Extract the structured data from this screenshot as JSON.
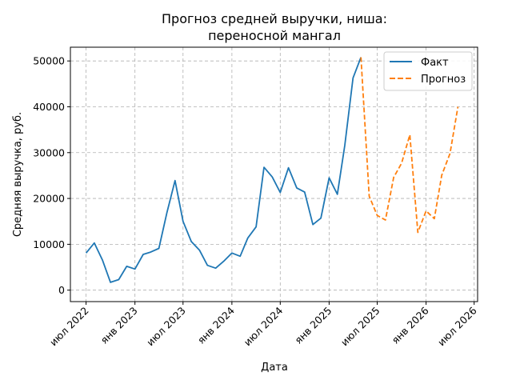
{
  "chart_data": {
    "type": "line",
    "title_lines": [
      "Прогноз средней выручки, ниша:",
      "переносной мангал"
    ],
    "xlabel": "Дата",
    "ylabel": "Средняя выручка, руб.",
    "x_range": [
      "2022-05-03",
      "2026-07-14"
    ],
    "ylim": [
      -2500,
      53000
    ],
    "y_ticks": [
      0,
      10000,
      20000,
      30000,
      40000,
      50000
    ],
    "x_ticks": [
      {
        "date": "2022-07-01",
        "label": "июл 2022"
      },
      {
        "date": "2023-01-01",
        "label": "янв 2023"
      },
      {
        "date": "2023-07-01",
        "label": "июл 2023"
      },
      {
        "date": "2024-01-01",
        "label": "янв 2024"
      },
      {
        "date": "2024-07-01",
        "label": "июл 2024"
      },
      {
        "date": "2025-01-01",
        "label": "янв 2025"
      },
      {
        "date": "2025-07-01",
        "label": "июл 2025"
      },
      {
        "date": "2026-01-01",
        "label": "янв 2026"
      },
      {
        "date": "2026-07-01",
        "label": "июл 2026"
      }
    ],
    "grid": true,
    "legend_position": "top-right",
    "series": [
      {
        "name": "Факт",
        "color": "#1f77b4",
        "style": "solid",
        "points": [
          {
            "x": "2022-07-01",
            "y": 8100
          },
          {
            "x": "2022-08-01",
            "y": 10300
          },
          {
            "x": "2022-09-01",
            "y": 6500
          },
          {
            "x": "2022-10-01",
            "y": 1700
          },
          {
            "x": "2022-11-01",
            "y": 2300
          },
          {
            "x": "2022-12-01",
            "y": 5200
          },
          {
            "x": "2023-01-01",
            "y": 4600
          },
          {
            "x": "2023-02-01",
            "y": 7800
          },
          {
            "x": "2023-03-01",
            "y": 8300
          },
          {
            "x": "2023-04-01",
            "y": 9100
          },
          {
            "x": "2023-05-01",
            "y": 16800
          },
          {
            "x": "2023-06-01",
            "y": 23900
          },
          {
            "x": "2023-07-01",
            "y": 15000
          },
          {
            "x": "2023-08-01",
            "y": 10600
          },
          {
            "x": "2023-09-01",
            "y": 8700
          },
          {
            "x": "2023-10-01",
            "y": 5400
          },
          {
            "x": "2023-11-01",
            "y": 4800
          },
          {
            "x": "2023-12-01",
            "y": 6300
          },
          {
            "x": "2024-01-01",
            "y": 8100
          },
          {
            "x": "2024-02-01",
            "y": 7400
          },
          {
            "x": "2024-03-01",
            "y": 11400
          },
          {
            "x": "2024-04-01",
            "y": 13800
          },
          {
            "x": "2024-05-01",
            "y": 26800
          },
          {
            "x": "2024-06-01",
            "y": 24700
          },
          {
            "x": "2024-07-01",
            "y": 21300
          },
          {
            "x": "2024-08-01",
            "y": 26700
          },
          {
            "x": "2024-09-01",
            "y": 22300
          },
          {
            "x": "2024-10-01",
            "y": 21400
          },
          {
            "x": "2024-11-01",
            "y": 14300
          },
          {
            "x": "2024-12-01",
            "y": 15700
          },
          {
            "x": "2025-01-01",
            "y": 24500
          },
          {
            "x": "2025-02-01",
            "y": 20900
          },
          {
            "x": "2025-03-01",
            "y": 31600
          },
          {
            "x": "2025-04-01",
            "y": 46300
          },
          {
            "x": "2025-05-01",
            "y": 50800
          }
        ]
      },
      {
        "name": "Прогноз",
        "color": "#ff7f0e",
        "style": "dashed",
        "points": [
          {
            "x": "2025-05-01",
            "y": 50800
          },
          {
            "x": "2025-06-01",
            "y": 20500
          },
          {
            "x": "2025-07-01",
            "y": 16300
          },
          {
            "x": "2025-08-01",
            "y": 15300
          },
          {
            "x": "2025-09-01",
            "y": 24600
          },
          {
            "x": "2025-10-01",
            "y": 27700
          },
          {
            "x": "2025-11-01",
            "y": 33900
          },
          {
            "x": "2025-12-01",
            "y": 12600
          },
          {
            "x": "2026-01-01",
            "y": 17300
          },
          {
            "x": "2026-02-01",
            "y": 15600
          },
          {
            "x": "2026-03-01",
            "y": 25100
          },
          {
            "x": "2026-04-01",
            "y": 29800
          },
          {
            "x": "2026-05-01",
            "y": 40000
          }
        ]
      }
    ]
  }
}
